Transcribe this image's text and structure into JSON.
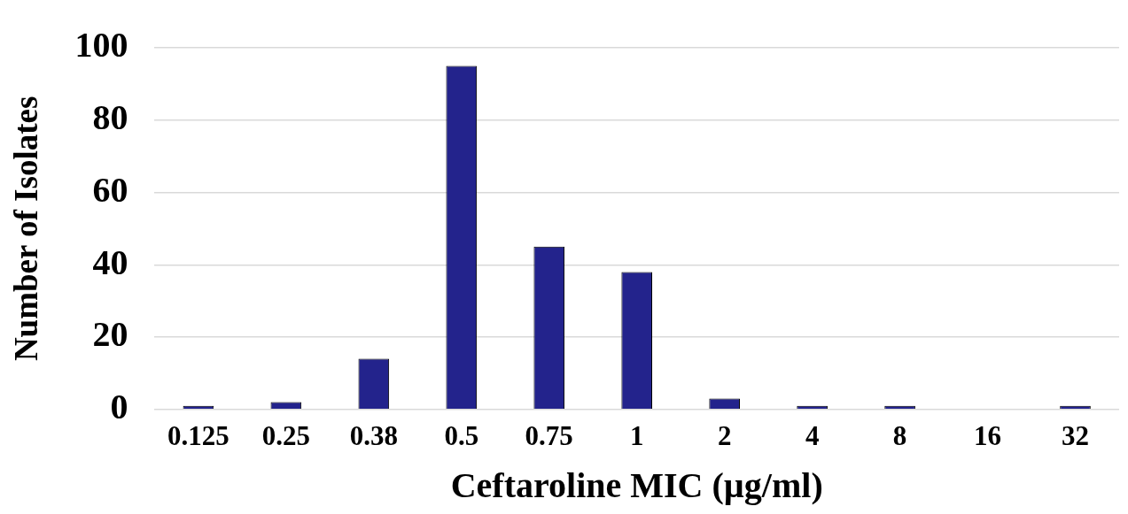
{
  "chart_data": {
    "type": "bar",
    "xlabel": "Ceftaroline MIC (µg/ml)",
    "ylabel": "Number of Isolates",
    "categories": [
      "0.125",
      "0.25",
      "0.38",
      "0.5",
      "0.75",
      "1",
      "2",
      "4",
      "8",
      "16",
      "32"
    ],
    "values": [
      1,
      2,
      14,
      95,
      45,
      38,
      3,
      1,
      1,
      0,
      1
    ],
    "color": "#23238c",
    "ylim": [
      0,
      100
    ],
    "yticks": [
      0,
      20,
      40,
      60,
      80,
      100
    ],
    "grid": "y",
    "legend": false
  }
}
